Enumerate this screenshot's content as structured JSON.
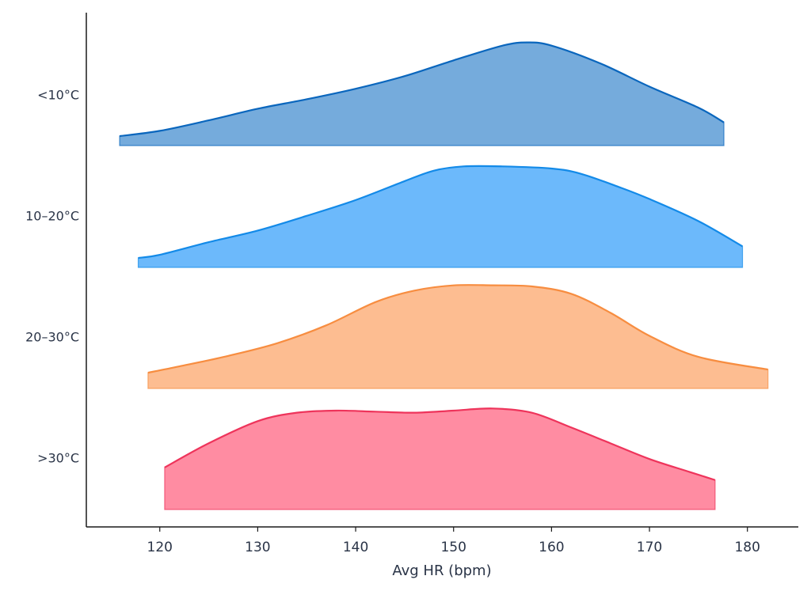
{
  "chart_data": {
    "type": "area",
    "subtype": "ridgeline",
    "title": "",
    "xlabel": "Avg HR (bpm)",
    "ylabel": "",
    "xlim": [
      112.5,
      185.2
    ],
    "xticks": [
      120,
      130,
      140,
      150,
      160,
      170,
      180
    ],
    "grid": false,
    "legend": "none",
    "series": [
      {
        "category": "<10°C",
        "color": "#0a66bd",
        "fill": "#75abdc",
        "x": [
          115.9,
          120,
          125,
          130,
          135,
          140,
          145,
          150,
          155,
          157.5,
          160,
          165,
          170,
          175,
          177.6
        ],
        "density": [
          0.09,
          0.14,
          0.24,
          0.35,
          0.44,
          0.54,
          0.66,
          0.81,
          0.95,
          0.98,
          0.95,
          0.78,
          0.56,
          0.36,
          0.22
        ]
      },
      {
        "category": "10–20°C",
        "color": "#138ae8",
        "fill": "#6cb9fb",
        "x": [
          117.8,
          120,
          125,
          130,
          135,
          140,
          145,
          148,
          151,
          155,
          160,
          163,
          167,
          170,
          175,
          179.5
        ],
        "density": [
          0.09,
          0.12,
          0.24,
          0.35,
          0.49,
          0.64,
          0.82,
          0.92,
          0.96,
          0.96,
          0.94,
          0.89,
          0.76,
          0.65,
          0.44,
          0.2
        ]
      },
      {
        "category": "20–30°C",
        "color": "#f78d40",
        "fill": "#fdbd91",
        "x": [
          118.8,
          122,
          127,
          132,
          137,
          142,
          146,
          150,
          154,
          158,
          162,
          166,
          170,
          175,
          182.1
        ],
        "density": [
          0.15,
          0.21,
          0.31,
          0.43,
          0.6,
          0.82,
          0.93,
          0.98,
          0.98,
          0.97,
          0.9,
          0.72,
          0.5,
          0.3,
          0.18
        ]
      },
      {
        "category": ">30°C",
        "color": "#ee345b",
        "fill": "#ff8ca2",
        "x": [
          120.5,
          125,
          130,
          134,
          138,
          142,
          146,
          150,
          154,
          158,
          162,
          166,
          170,
          174,
          176.7
        ],
        "density": [
          0.4,
          0.63,
          0.84,
          0.92,
          0.94,
          0.93,
          0.92,
          0.94,
          0.96,
          0.92,
          0.78,
          0.63,
          0.48,
          0.36,
          0.28
        ]
      }
    ]
  }
}
